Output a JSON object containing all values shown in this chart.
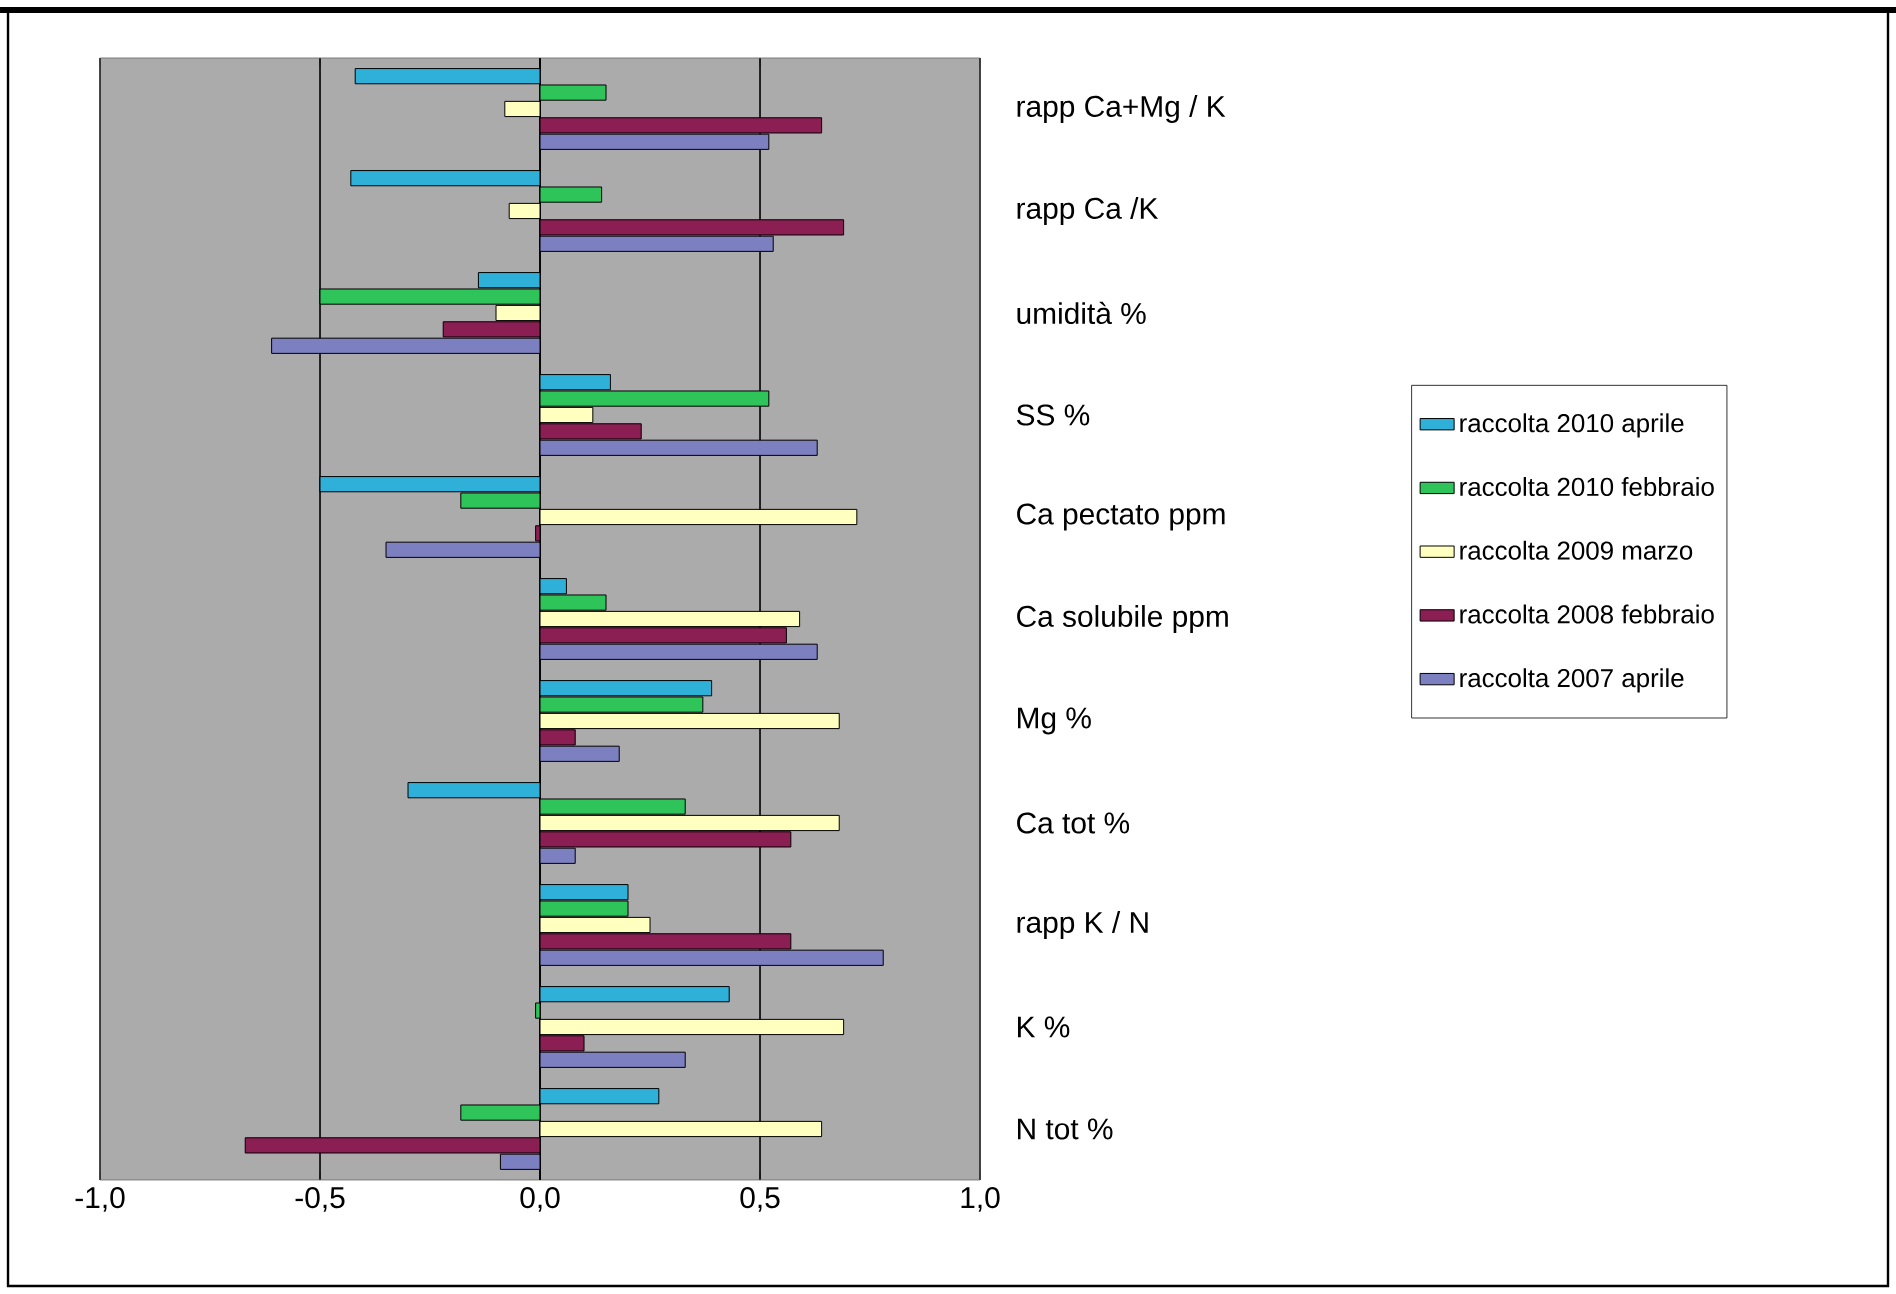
{
  "chart_data": {
    "type": "bar",
    "orientation": "horizontal",
    "categories": [
      "rapp Ca+Mg / K",
      "rapp Ca /K",
      "umidità %",
      "SS %",
      "Ca pectato ppm",
      "Ca solubile ppm",
      "Mg %",
      "Ca tot %",
      "rapp K / N",
      "K %",
      "N tot %"
    ],
    "series": [
      {
        "name": "raccolta 2010 aprile",
        "color": "#2fb0d8",
        "values": [
          -0.42,
          -0.43,
          -0.14,
          0.16,
          -0.5,
          0.06,
          0.39,
          -0.3,
          0.2,
          0.43,
          0.27
        ]
      },
      {
        "name": "raccolta 2010 febbraio",
        "color": "#2ec45a",
        "values": [
          0.15,
          0.14,
          -0.5,
          0.52,
          -0.18,
          0.15,
          0.37,
          0.33,
          0.2,
          -0.01,
          -0.18
        ]
      },
      {
        "name": "raccolta 2009 marzo",
        "color": "#ffffc0",
        "values": [
          -0.08,
          -0.07,
          -0.1,
          0.12,
          0.72,
          0.59,
          0.68,
          0.68,
          0.25,
          0.69,
          0.64
        ]
      },
      {
        "name": "raccolta 2008 febbraio",
        "color": "#8b1e52",
        "values": [
          0.64,
          0.69,
          -0.22,
          0.23,
          -0.01,
          0.56,
          0.08,
          0.57,
          0.57,
          0.1,
          -0.67
        ]
      },
      {
        "name": "raccolta 2007 aprile",
        "color": "#7c7fc0",
        "values": [
          0.52,
          0.53,
          -0.61,
          0.63,
          -0.35,
          0.63,
          0.18,
          0.08,
          0.78,
          0.33,
          -0.09
        ]
      }
    ],
    "xlim": [
      -1.0,
      1.0
    ],
    "xticks": [
      {
        "value": -1.0,
        "label": "-1,0"
      },
      {
        "value": -0.5,
        "label": "-0,5"
      },
      {
        "value": 0.0,
        "label": "0,0"
      },
      {
        "value": 0.5,
        "label": "0,5"
      },
      {
        "value": 1.0,
        "label": "1,0"
      }
    ],
    "grid": "x",
    "legend": "right"
  }
}
